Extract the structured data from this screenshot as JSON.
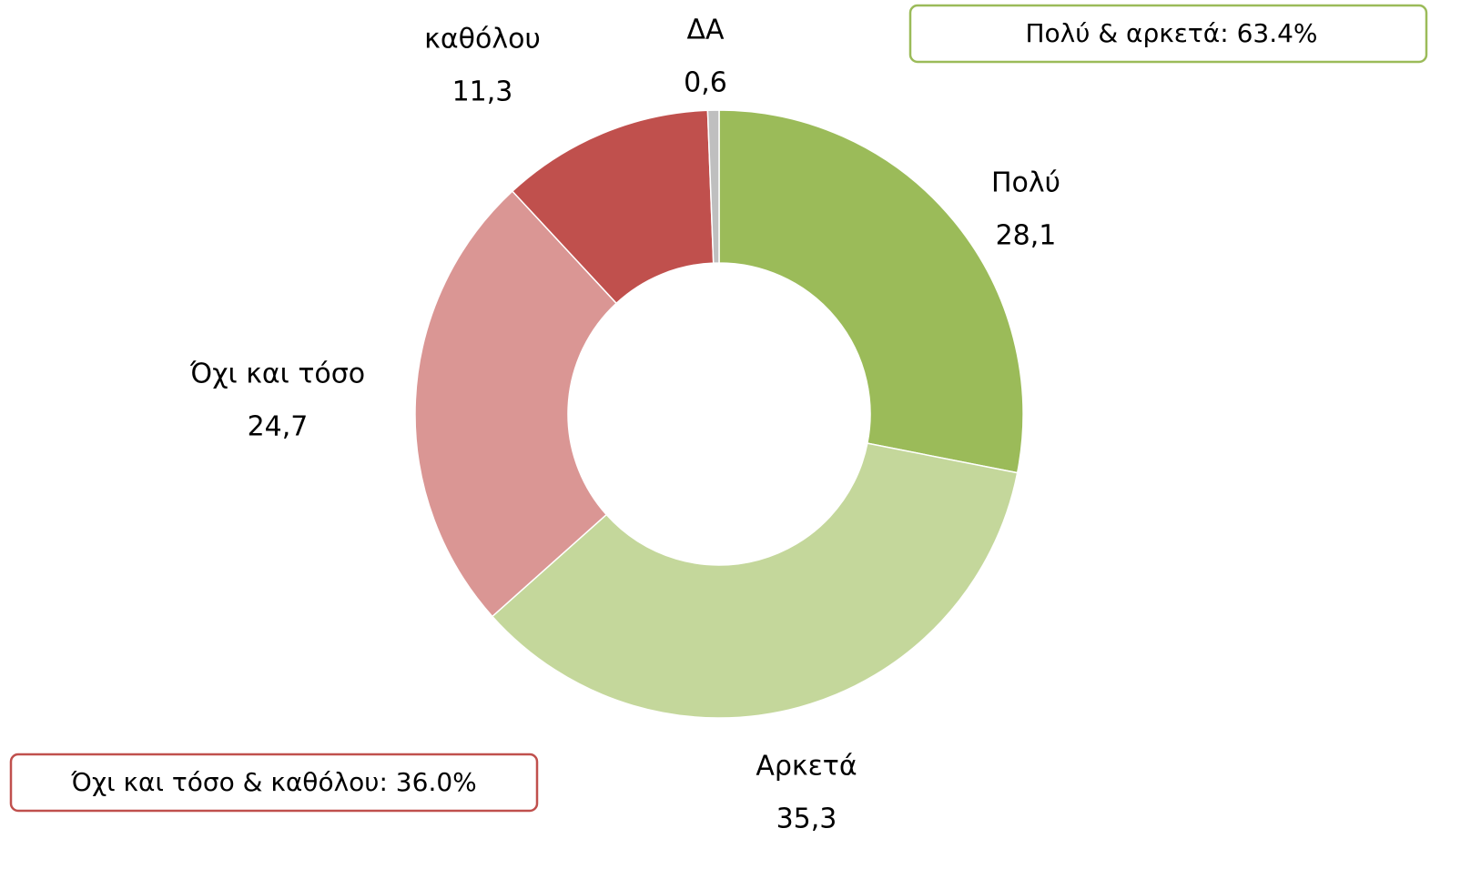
{
  "chart_data": {
    "type": "donut",
    "categories": [
      "Πολύ",
      "Αρκετά",
      "Όχι και τόσο",
      "καθόλου",
      "ΔΑ"
    ],
    "values": [
      28.1,
      35.3,
      24.7,
      11.3,
      0.6
    ],
    "value_labels": [
      "28,1",
      "35,3",
      "24,7",
      "11,3",
      "0,6"
    ],
    "colors": [
      "#9bbb59",
      "#c4d79b",
      "#da9694",
      "#c0504d",
      "#bfbfbf"
    ],
    "annotations": [
      "Πολύ & αρκετά: 63.4%",
      "Όχι και τόσο & καθόλου: 36.0%"
    ]
  }
}
